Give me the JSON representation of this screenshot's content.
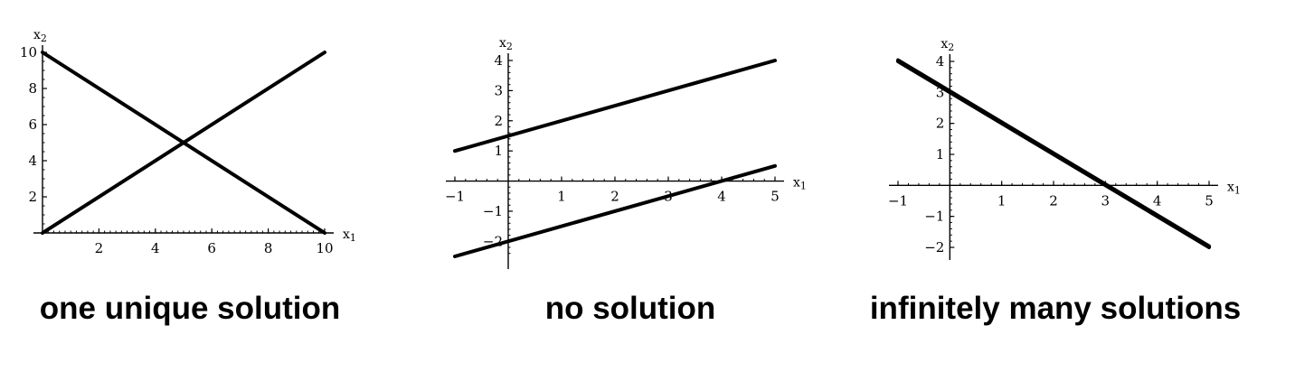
{
  "colors": {
    "line": "#000000",
    "axis": "#000000",
    "background": "#ffffff"
  },
  "chart_data": [
    {
      "type": "line",
      "caption": "one unique solution",
      "xlabel": "x1",
      "ylabel": "x2",
      "xlim": [
        0,
        10
      ],
      "ylim": [
        0,
        10
      ],
      "xticks": [
        2,
        4,
        6,
        8,
        10
      ],
      "yticks": [
        2,
        4,
        6,
        8,
        10
      ],
      "series": [
        {
          "x": [
            0,
            10
          ],
          "y": [
            10,
            0
          ]
        },
        {
          "x": [
            0,
            10
          ],
          "y": [
            0,
            10
          ]
        }
      ]
    },
    {
      "type": "line",
      "caption": "no solution",
      "xlabel": "x1",
      "ylabel": "x2",
      "xlim": [
        -1,
        5
      ],
      "ylim": [
        -2.5,
        4
      ],
      "xticks": [
        -1,
        1,
        2,
        3,
        4,
        5
      ],
      "yticks": [
        -2,
        -1,
        1,
        2,
        3,
        4
      ],
      "series": [
        {
          "x": [
            -1,
            5
          ],
          "y": [
            1,
            4
          ]
        },
        {
          "x": [
            -1,
            5
          ],
          "y": [
            -2.5,
            0.5
          ]
        }
      ]
    },
    {
      "type": "line",
      "caption": "infinitely many solutions",
      "xlabel": "x1",
      "ylabel": "x2",
      "xlim": [
        -1,
        5
      ],
      "ylim": [
        -2,
        4
      ],
      "xticks": [
        -1,
        1,
        2,
        3,
        4,
        5
      ],
      "yticks": [
        -2,
        -1,
        1,
        2,
        3,
        4
      ],
      "series": [
        {
          "x": [
            -1,
            5
          ],
          "y": [
            4,
            -2
          ]
        },
        {
          "x": [
            -1,
            5
          ],
          "y": [
            4.04,
            -1.96
          ]
        }
      ]
    }
  ]
}
